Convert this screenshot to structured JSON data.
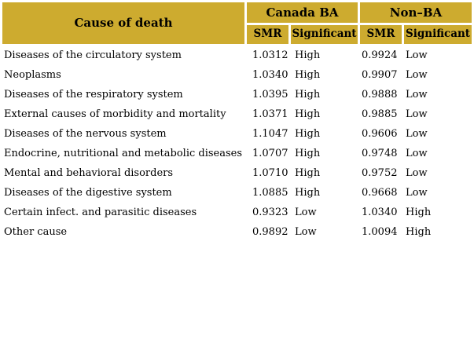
{
  "colors": {
    "header_bg": "#CDAB2F",
    "text": "#000000",
    "page_bg": "#FFFFFF"
  },
  "chart_data": {
    "type": "table",
    "title": "",
    "header": {
      "cause": "Cause of death",
      "groups": [
        {
          "label": "Canada BA",
          "sub": [
            "SMR",
            "Significant"
          ]
        },
        {
          "label": "Non–BA",
          "sub": [
            "SMR",
            "Significant"
          ]
        }
      ]
    },
    "rows": [
      [
        "Diseases of the circulatory system",
        "1.0312",
        "High",
        "0.9924",
        "Low"
      ],
      [
        "Neoplasms",
        "1.0340",
        "High",
        "0.9907",
        "Low"
      ],
      [
        "Diseases of the respiratory system",
        "1.0395",
        "High",
        "0.9888",
        "Low"
      ],
      [
        "External causes of morbidity and mortality",
        "1.0371",
        "High",
        "0.9885",
        "Low"
      ],
      [
        "Diseases of the nervous system",
        "1.1047",
        "High",
        "0.9606",
        "Low"
      ],
      [
        "Endocrine, nutritional and metabolic diseases",
        "1.0707",
        "High",
        "0.9748",
        "Low"
      ],
      [
        "Mental and behavioral disorders",
        "1.0710",
        "High",
        "0.9752",
        "Low"
      ],
      [
        "Diseases of the digestive system",
        "1.0885",
        "High",
        "0.9668",
        "Low"
      ],
      [
        "Certain infect. and parasitic diseases",
        "0.9323",
        "Low",
        "1.0340",
        "High"
      ],
      [
        "Other cause",
        "0.9892",
        "Low",
        "1.0094",
        "High"
      ]
    ]
  }
}
